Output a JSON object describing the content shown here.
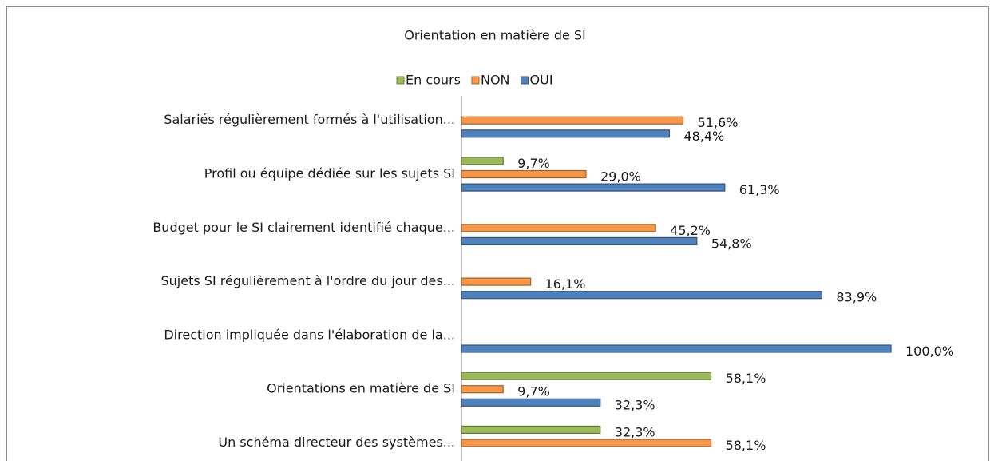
{
  "chart_data": {
    "type": "bar",
    "orientation": "horizontal",
    "title": "Orientation en matière de SI",
    "categories": [
      "Salariés  régulièrement formés à  l'utilisation...",
      "Profil ou équipe dédiée sur les sujets SI",
      "Budget pour le SI clairement identifié chaque...",
      "Sujets SI régulièrement à  l'ordre du jour des...",
      "Direction impliquée dans l'élaboration de la...",
      "Orientations en matière de SI",
      "Un schéma directeur des systèmes..."
    ],
    "xlim": [
      0,
      100
    ],
    "series": [
      {
        "name": "En cours",
        "color": "#9bbb59",
        "values": [
          null,
          9.7,
          null,
          null,
          null,
          58.1,
          32.3
        ],
        "value_labels": [
          null,
          "9,7%",
          null,
          null,
          null,
          "58,1%",
          "32,3%"
        ]
      },
      {
        "name": "NON",
        "color": "#f79646",
        "values": [
          51.6,
          29.0,
          45.2,
          16.1,
          null,
          9.7,
          58.1
        ],
        "value_labels": [
          "51,6%",
          "29,0%",
          "45,2%",
          "16,1%",
          null,
          "9,7%",
          "58,1%"
        ]
      },
      {
        "name": "OUI",
        "color": "#4f81bd",
        "values": [
          48.4,
          61.3,
          54.8,
          83.9,
          100.0,
          32.3,
          null
        ],
        "value_labels": [
          "48,4%",
          "61,3%",
          "54,8%",
          "83,9%",
          "100,0%",
          "32,3%",
          null
        ]
      }
    ]
  }
}
